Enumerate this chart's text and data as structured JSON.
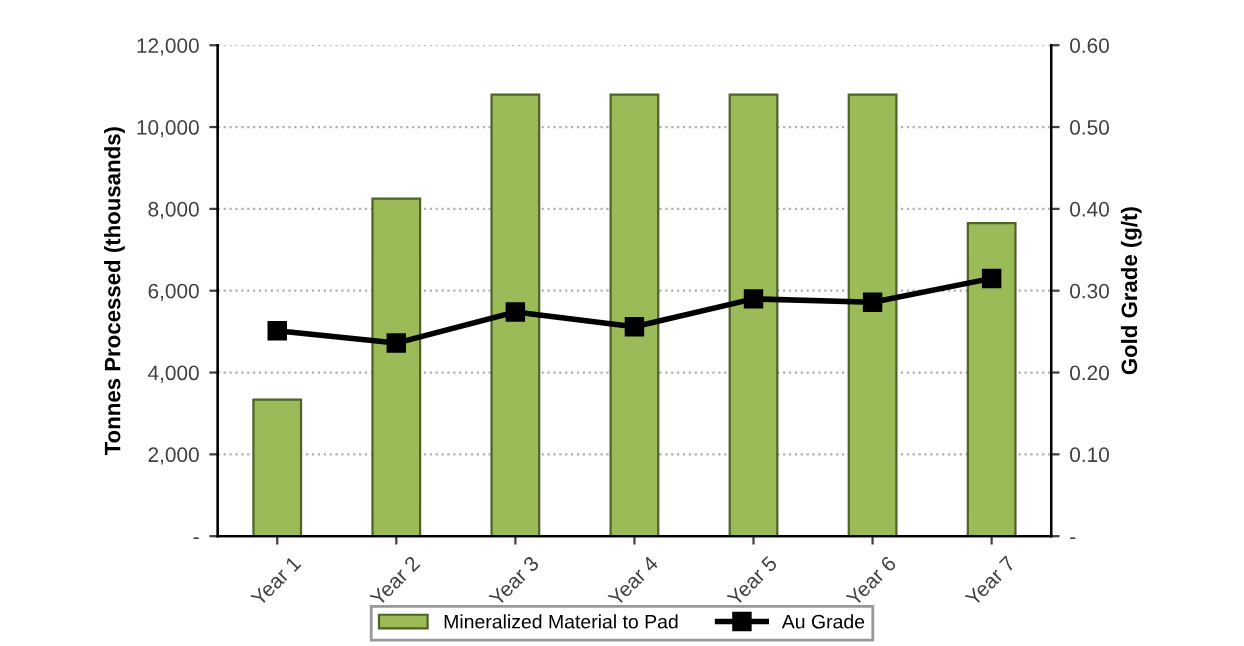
{
  "chart_data": {
    "type": "bar",
    "ylabel": "Tonnes Processed (thousands)",
    "y2label": "Gold Grade (g/t)",
    "categories": [
      "Year 1",
      "Year 2",
      "Year 3",
      "Year 4",
      "Year 5",
      "Year 6",
      "Year 7"
    ],
    "series": [
      {
        "name": "Mineralized Material to Pad",
        "color": "#9bbb59",
        "values": [
          3340,
          8250,
          10790,
          10790,
          10790,
          10790,
          7650
        ]
      },
      {
        "name": "Au Grade",
        "type": "line",
        "axis": "y2",
        "color": "#000000",
        "marker": "square",
        "values": [
          0.251,
          0.236,
          0.274,
          0.256,
          0.29,
          0.286,
          0.315
        ]
      }
    ],
    "ylim": [
      0,
      12000
    ],
    "yticks": [
      {
        "value": 0,
        "label": "-"
      },
      {
        "value": 2000,
        "label": "2,000"
      },
      {
        "value": 4000,
        "label": "4,000"
      },
      {
        "value": 6000,
        "label": "6,000"
      },
      {
        "value": 8000,
        "label": "8,000"
      },
      {
        "value": 10000,
        "label": "10,000"
      },
      {
        "value": 12000,
        "label": "12,000"
      }
    ],
    "y2lim": [
      0,
      0.6
    ],
    "y2ticks": [
      {
        "value": 0,
        "label": "-"
      },
      {
        "value": 0.1,
        "label": "0.10"
      },
      {
        "value": 0.2,
        "label": "0.20"
      },
      {
        "value": 0.3,
        "label": "0.30"
      },
      {
        "value": 0.4,
        "label": "0.40"
      },
      {
        "value": 0.5,
        "label": "0.50"
      },
      {
        "value": 0.6,
        "label": "0.60"
      }
    ],
    "grid": "y",
    "legend": "bottom"
  }
}
